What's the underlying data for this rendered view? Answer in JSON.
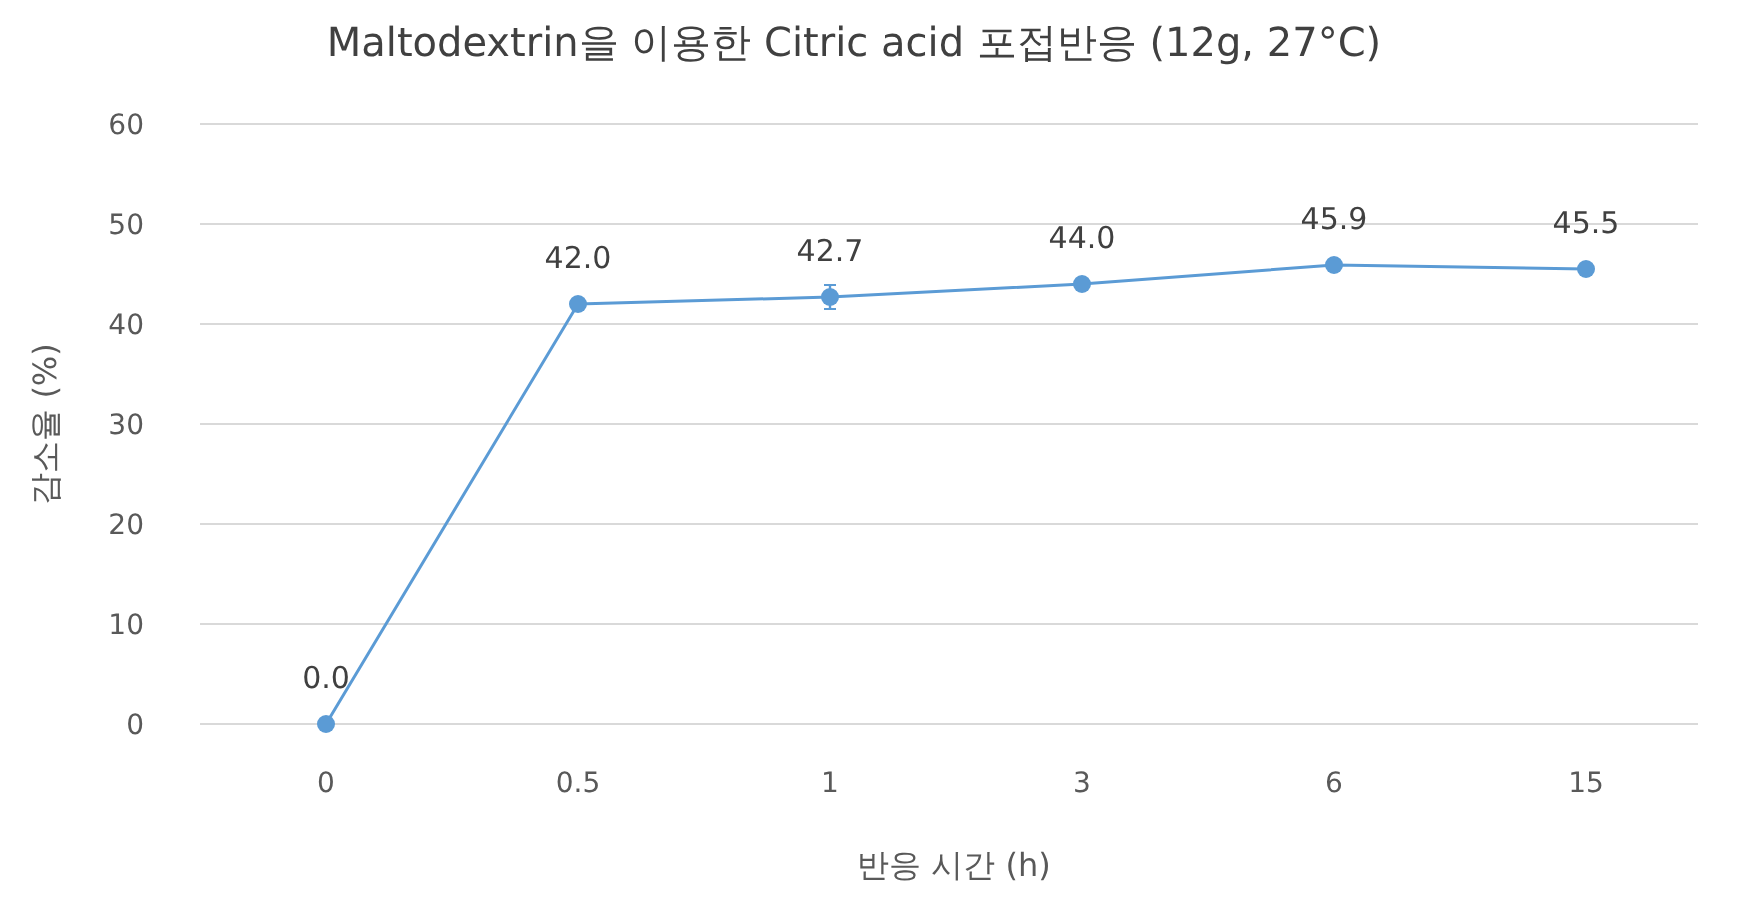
{
  "chart_data": {
    "type": "line",
    "title": "Maltodextrin을 이용한 Citric acid 포접반응 (12g, 27°C)",
    "xlabel": "반응 시간 (h)",
    "ylabel": "감소율 (%)",
    "categories": [
      "0",
      "0.5",
      "1",
      "3",
      "6",
      "15"
    ],
    "series": [
      {
        "color": "#5b9bd5",
        "values": [
          0.0,
          42.0,
          42.7,
          44.0,
          45.9,
          45.5
        ],
        "value_labels": [
          "0.0",
          "42.0",
          "42.7",
          "44.0",
          "45.9",
          "45.5"
        ],
        "errors": [
          null,
          null,
          1.2,
          null,
          null,
          null
        ]
      }
    ],
    "ylim": [
      0,
      60
    ],
    "yticks": [
      0,
      10,
      20,
      30,
      40,
      50,
      60
    ],
    "grid": "y",
    "marker": "circle",
    "line_style": "solid"
  }
}
